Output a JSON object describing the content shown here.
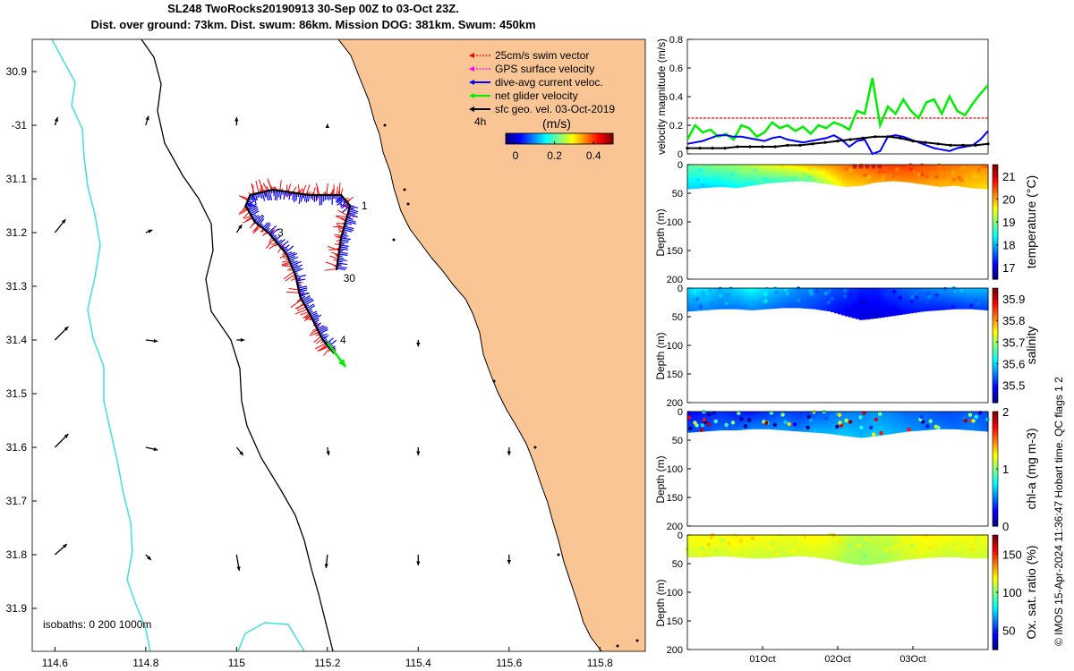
{
  "header": {
    "title_line1": "SL248 TwoRocks20190913 30-Sep 00Z to 03-Oct 23Z.",
    "title_line2": "Dist. over ground: 73km. Dist. swum: 86km. Mission DOG: 381km. Swum: 450km"
  },
  "credit": "© IMOS 15-Apr-2024 11:36:47 Hobart time. QC flags 1  2",
  "colors": {
    "land": "#F9C594",
    "coast": "#000000",
    "isobath_shallow": "#000000",
    "isobath_deep": "#3FE0DC",
    "swim": "#FF0000",
    "gps": "#FF00FF",
    "dac": "#0000FF",
    "net": "#00EE00",
    "geo": "#000000"
  },
  "chart_data": [
    {
      "id": "map",
      "type": "scatter",
      "title": "",
      "xlim": [
        114.55,
        115.9
      ],
      "ylim": [
        -31.98,
        -30.84
      ],
      "x_ticks": [
        114.6,
        114.8,
        115,
        115.2,
        115.4,
        115.6,
        115.8
      ],
      "x_tick_labels": [
        "114.6",
        "114.8",
        "115",
        "115.2",
        "115.4",
        "115.6",
        "115.8"
      ],
      "y_ticks": [
        -30.9,
        -31.0,
        -31.1,
        -31.2,
        -31.3,
        -31.4,
        -31.5,
        -31.6,
        -31.7,
        -31.8,
        -31.9
      ],
      "y_tick_labels": [
        "30.9",
        "-31",
        "31.1",
        "31.2",
        "31.3",
        "31.4",
        "31.5",
        "31.6",
        "31.7",
        "31.8",
        "31.9"
      ],
      "isobath_text": "isobaths: 0   200  1000m",
      "legend": [
        {
          "label": "25cm/s swim vector",
          "color": "#FF0000",
          "style": "dashed"
        },
        {
          "label": "GPS surface velocity",
          "color": "#FF00FF",
          "style": "dashed"
        },
        {
          "label": "dive-avg current veloc.",
          "color": "#0000FF",
          "style": "solid"
        },
        {
          "label": "net glider velocity",
          "color": "#00EE00",
          "style": "solid"
        },
        {
          "label": "sfc geo. vel. 03-Oct-2019",
          "color": "#000000",
          "style": "solid"
        }
      ],
      "scale_label": "4h",
      "colorbar": {
        "title": "(m/s)",
        "ticks": [
          0,
          0.2,
          0.4
        ],
        "tick_labels": [
          "0",
          "0.2",
          "0.4"
        ],
        "range": [
          -0.05,
          0.5
        ]
      },
      "track": [
        {
          "lon": 115.25,
          "lat": -31.15
        },
        {
          "lon": 115.23,
          "lat": -31.13
        },
        {
          "lon": 115.16,
          "lat": -31.13
        },
        {
          "lon": 115.08,
          "lat": -31.12
        },
        {
          "lon": 115.03,
          "lat": -31.13
        },
        {
          "lon": 115.02,
          "lat": -31.15
        },
        {
          "lon": 115.04,
          "lat": -31.18
        },
        {
          "lon": 115.07,
          "lat": -31.2
        },
        {
          "lon": 115.11,
          "lat": -31.24
        },
        {
          "lon": 115.13,
          "lat": -31.28
        },
        {
          "lon": 115.14,
          "lat": -31.32
        },
        {
          "lon": 115.16,
          "lat": -31.35
        },
        {
          "lon": 115.19,
          "lat": -31.4
        },
        {
          "lon": 115.215,
          "lat": -31.425
        }
      ],
      "return_leg": [
        {
          "lon": 115.25,
          "lat": -31.15
        },
        {
          "lon": 115.23,
          "lat": -31.21
        },
        {
          "lon": 115.22,
          "lat": -31.27
        }
      ],
      "track_labels": [
        {
          "text": "1",
          "lon": 115.275,
          "lat": -31.15
        },
        {
          "text": "30",
          "lon": 115.235,
          "lat": -31.285
        },
        {
          "text": "3",
          "lon": 115.09,
          "lat": -31.2
        },
        {
          "text": "4",
          "lon": 115.228,
          "lat": -31.4
        }
      ],
      "net_arrow": {
        "lon": 115.2,
        "lat": -31.405,
        "dlon": 0.04,
        "dlat": -0.045
      },
      "geo_arrows": [
        {
          "lon": 114.6,
          "lat": -31.0,
          "u": 0.1,
          "v": 0.3
        },
        {
          "lon": 114.8,
          "lat": -31.0,
          "u": 0.1,
          "v": 0.35
        },
        {
          "lon": 115.0,
          "lat": -31.0,
          "u": 0.0,
          "v": 0.3
        },
        {
          "lon": 115.2,
          "lat": -31.0,
          "u": 0.0,
          "v": 0.05
        },
        {
          "lon": 114.6,
          "lat": -31.2,
          "u": 0.4,
          "v": 0.5
        },
        {
          "lon": 114.8,
          "lat": -31.2,
          "u": 0.25,
          "v": 0.1
        },
        {
          "lon": 115.0,
          "lat": -31.2,
          "u": 0.2,
          "v": 0.3
        },
        {
          "lon": 114.6,
          "lat": -31.4,
          "u": 0.5,
          "v": 0.5
        },
        {
          "lon": 114.8,
          "lat": -31.4,
          "u": 0.45,
          "v": -0.05
        },
        {
          "lon": 115.0,
          "lat": -31.4,
          "u": 0.3,
          "v": 0.0
        },
        {
          "lon": 115.4,
          "lat": -31.4,
          "u": 0.0,
          "v": -0.25
        },
        {
          "lon": 114.6,
          "lat": -31.6,
          "u": 0.5,
          "v": 0.5
        },
        {
          "lon": 114.8,
          "lat": -31.6,
          "u": 0.45,
          "v": -0.1
        },
        {
          "lon": 115.0,
          "lat": -31.6,
          "u": 0.25,
          "v": -0.3
        },
        {
          "lon": 115.2,
          "lat": -31.6,
          "u": 0.05,
          "v": -0.3
        },
        {
          "lon": 115.4,
          "lat": -31.6,
          "u": 0.0,
          "v": -0.3
        },
        {
          "lon": 115.6,
          "lat": -31.6,
          "u": 0.0,
          "v": -0.3
        },
        {
          "lon": 114.6,
          "lat": -31.8,
          "u": 0.45,
          "v": 0.4
        },
        {
          "lon": 114.8,
          "lat": -31.8,
          "u": 0.2,
          "v": -0.2
        },
        {
          "lon": 115.0,
          "lat": -31.8,
          "u": 0.1,
          "v": -0.6
        },
        {
          "lon": 115.2,
          "lat": -31.8,
          "u": -0.05,
          "v": -0.5
        },
        {
          "lon": 115.4,
          "lat": -31.8,
          "u": 0.0,
          "v": -0.4
        },
        {
          "lon": 115.6,
          "lat": -31.8,
          "u": 0.0,
          "v": -0.35
        }
      ]
    },
    {
      "id": "velocity",
      "type": "line",
      "ylabel": "velocity magnitude (m/s)",
      "ylim": [
        0,
        0.8
      ],
      "y_ticks": [
        0,
        0.2,
        0.4,
        0.6,
        0.8
      ],
      "y_tick_labels": [
        "0",
        "0.2",
        "0.4",
        "0.6",
        "0.8"
      ],
      "xlim": [
        0,
        4
      ],
      "series": [
        {
          "name": "swim reference",
          "color": "#FF0000",
          "values": [
            0.25,
            0.25
          ]
        },
        {
          "name": "net glider velocity",
          "color": "#00EE00",
          "values": [
            0.1,
            0.2,
            0.15,
            0.17,
            0.12,
            0.14,
            0.1,
            0.2,
            0.18,
            0.12,
            0.15,
            0.22,
            0.18,
            0.2,
            0.16,
            0.19,
            0.14,
            0.2,
            0.18,
            0.22,
            0.2,
            0.17,
            0.3,
            0.28,
            0.53,
            0.2,
            0.33,
            0.28,
            0.38,
            0.3,
            0.25,
            0.36,
            0.38,
            0.28,
            0.4,
            0.3,
            0.27,
            0.35,
            0.42,
            0.48
          ]
        },
        {
          "name": "dive-avg current",
          "color": "#0000FF",
          "values": [
            0.07,
            0.08,
            0.09,
            0.11,
            0.13,
            0.13,
            0.12,
            0.12,
            0.11,
            0.1,
            0.09,
            0.11,
            0.12,
            0.1,
            0.09,
            0.08,
            0.09,
            0.1,
            0.11,
            0.13,
            0.1,
            0.05,
            0.09,
            0.1,
            0.0,
            0.02,
            0.12,
            0.13,
            0.12,
            0.1,
            0.08,
            0.06,
            0.04,
            0.03,
            0.02,
            0.04,
            0.05,
            0.06,
            0.1,
            0.16
          ]
        },
        {
          "name": "sfc geo. vel.",
          "color": "#000000",
          "values": [
            0.04,
            0.04,
            0.04,
            0.04,
            0.05,
            0.05,
            0.05,
            0.05,
            0.06,
            0.06,
            0.07,
            0.08,
            0.09,
            0.1,
            0.11,
            0.12,
            0.12,
            0.11,
            0.09,
            0.08,
            0.07,
            0.06,
            0.06,
            0.06,
            0.07
          ]
        }
      ]
    },
    {
      "id": "temperature",
      "type": "heatmap",
      "ylabel": "Depth (m)",
      "cbar_label": "temperature (°C)",
      "ylim": [
        0,
        200
      ],
      "y_ticks": [
        0,
        50,
        100,
        150,
        200
      ],
      "y_tick_labels": [
        "0",
        "50",
        "100",
        "150",
        "200"
      ],
      "cbar_range": [
        16.5,
        21.5
      ],
      "cbar_ticks": [
        17,
        18,
        19,
        20,
        21
      ],
      "cbar_tick_labels": [
        "17",
        "18",
        "19",
        "20",
        "21"
      ],
      "profile_depth": [
        42,
        40,
        38,
        40,
        36,
        32,
        30,
        28,
        30,
        34,
        38,
        36,
        30,
        28,
        30,
        34,
        38,
        36,
        40,
        42
      ],
      "surface_values": [
        18.8,
        18.9,
        19.0,
        19.1,
        19.3,
        19.5,
        19.6,
        19.8,
        20.0,
        20.1,
        20.3,
        20.4,
        20.5,
        20.6,
        20.6,
        20.5,
        20.4,
        20.3,
        20.2,
        20.2
      ],
      "bottom_values": [
        18.2,
        18.2,
        18.3,
        18.4,
        18.5,
        18.6,
        18.7,
        18.8,
        19.0,
        19.4,
        19.8,
        19.9,
        20.1,
        20.2,
        20.2,
        20.1,
        20.0,
        20.0,
        19.9,
        19.8
      ]
    },
    {
      "id": "salinity",
      "type": "heatmap",
      "ylabel": "Depth (m)",
      "cbar_label": "salinity",
      "ylim": [
        0,
        200
      ],
      "y_ticks": [
        0,
        50,
        100,
        150,
        200
      ],
      "y_tick_labels": [
        "0",
        "50",
        "100",
        "150",
        "200"
      ],
      "cbar_range": [
        35.42,
        35.95
      ],
      "cbar_ticks": [
        35.5,
        35.6,
        35.7,
        35.8,
        35.9
      ],
      "cbar_tick_labels": [
        "35.5",
        "35.6",
        "35.7",
        "35.8",
        "35.9"
      ],
      "profile_depth": [
        40,
        38,
        36,
        36,
        38,
        36,
        34,
        34,
        36,
        40,
        48,
        55,
        52,
        48,
        44,
        40,
        38,
        36,
        36,
        38
      ],
      "surface_values": [
        35.6,
        35.61,
        35.58,
        35.6,
        35.62,
        35.6,
        35.58,
        35.56,
        35.55,
        35.53,
        35.52,
        35.5,
        35.5,
        35.52,
        35.54,
        35.55,
        35.56,
        35.57,
        35.58,
        35.58
      ],
      "bottom_values": [
        35.55,
        35.56,
        35.55,
        35.55,
        35.56,
        35.55,
        35.54,
        35.53,
        35.52,
        35.5,
        35.48,
        35.47,
        35.47,
        35.48,
        35.49,
        35.5,
        35.5,
        35.51,
        35.52,
        35.52
      ]
    },
    {
      "id": "chla",
      "type": "heatmap",
      "ylabel": "Depth (m)",
      "cbar_label": "chl-a (mg m-3)",
      "ylim": [
        0,
        200
      ],
      "y_ticks": [
        0,
        50,
        100,
        150,
        200
      ],
      "y_tick_labels": [
        "0",
        "50",
        "100",
        "150",
        "200"
      ],
      "cbar_range": [
        0,
        2
      ],
      "cbar_ticks": [
        0,
        1,
        2
      ],
      "cbar_tick_labels": [
        "0",
        "1",
        "2"
      ],
      "profile_depth": [
        36,
        34,
        32,
        32,
        30,
        30,
        32,
        34,
        36,
        38,
        42,
        45,
        42,
        38,
        34,
        32,
        30,
        30,
        32,
        34
      ],
      "surface_values": [
        0.25,
        0.3,
        0.35,
        0.3,
        0.3,
        0.35,
        0.4,
        0.35,
        0.4,
        0.45,
        0.5,
        0.5,
        0.55,
        0.5,
        0.45,
        0.45,
        0.4,
        0.4,
        0.45,
        0.4
      ],
      "bottom_values": [
        0.4,
        0.4,
        0.45,
        0.45,
        0.5,
        0.5,
        0.55,
        0.5,
        0.6,
        0.6,
        0.65,
        0.6,
        0.65,
        0.6,
        0.55,
        0.5,
        0.5,
        0.45,
        0.5,
        0.45
      ]
    },
    {
      "id": "oxygen",
      "type": "heatmap",
      "ylabel": "Depth (m)",
      "cbar_label": "Ox. sat. ratio (%)",
      "ylim": [
        0,
        200
      ],
      "y_ticks": [
        0,
        50,
        100,
        150,
        200
      ],
      "y_tick_labels": [
        "0",
        "50",
        "100",
        "150",
        "200"
      ],
      "xlim": [
        0,
        4
      ],
      "x_ticks": [
        1,
        2,
        3
      ],
      "x_tick_labels": [
        "01Oct",
        "02Oct",
        "03Oct"
      ],
      "cbar_range": [
        25,
        175
      ],
      "cbar_ticks": [
        50,
        100,
        150
      ],
      "cbar_tick_labels": [
        "50",
        "100",
        "150"
      ],
      "profile_depth": [
        38,
        38,
        36,
        38,
        40,
        40,
        38,
        36,
        38,
        42,
        48,
        52,
        50,
        46,
        42,
        40,
        38,
        38,
        40,
        40
      ],
      "surface_values": [
        118,
        120,
        119,
        121,
        119,
        118,
        117,
        118,
        120,
        118,
        112,
        108,
        110,
        112,
        118,
        120,
        119,
        117,
        118,
        117
      ],
      "bottom_values": [
        112,
        113,
        112,
        113,
        112,
        111,
        111,
        112,
        113,
        111,
        106,
        104,
        106,
        108,
        112,
        113,
        112,
        111,
        112,
        111
      ]
    }
  ]
}
